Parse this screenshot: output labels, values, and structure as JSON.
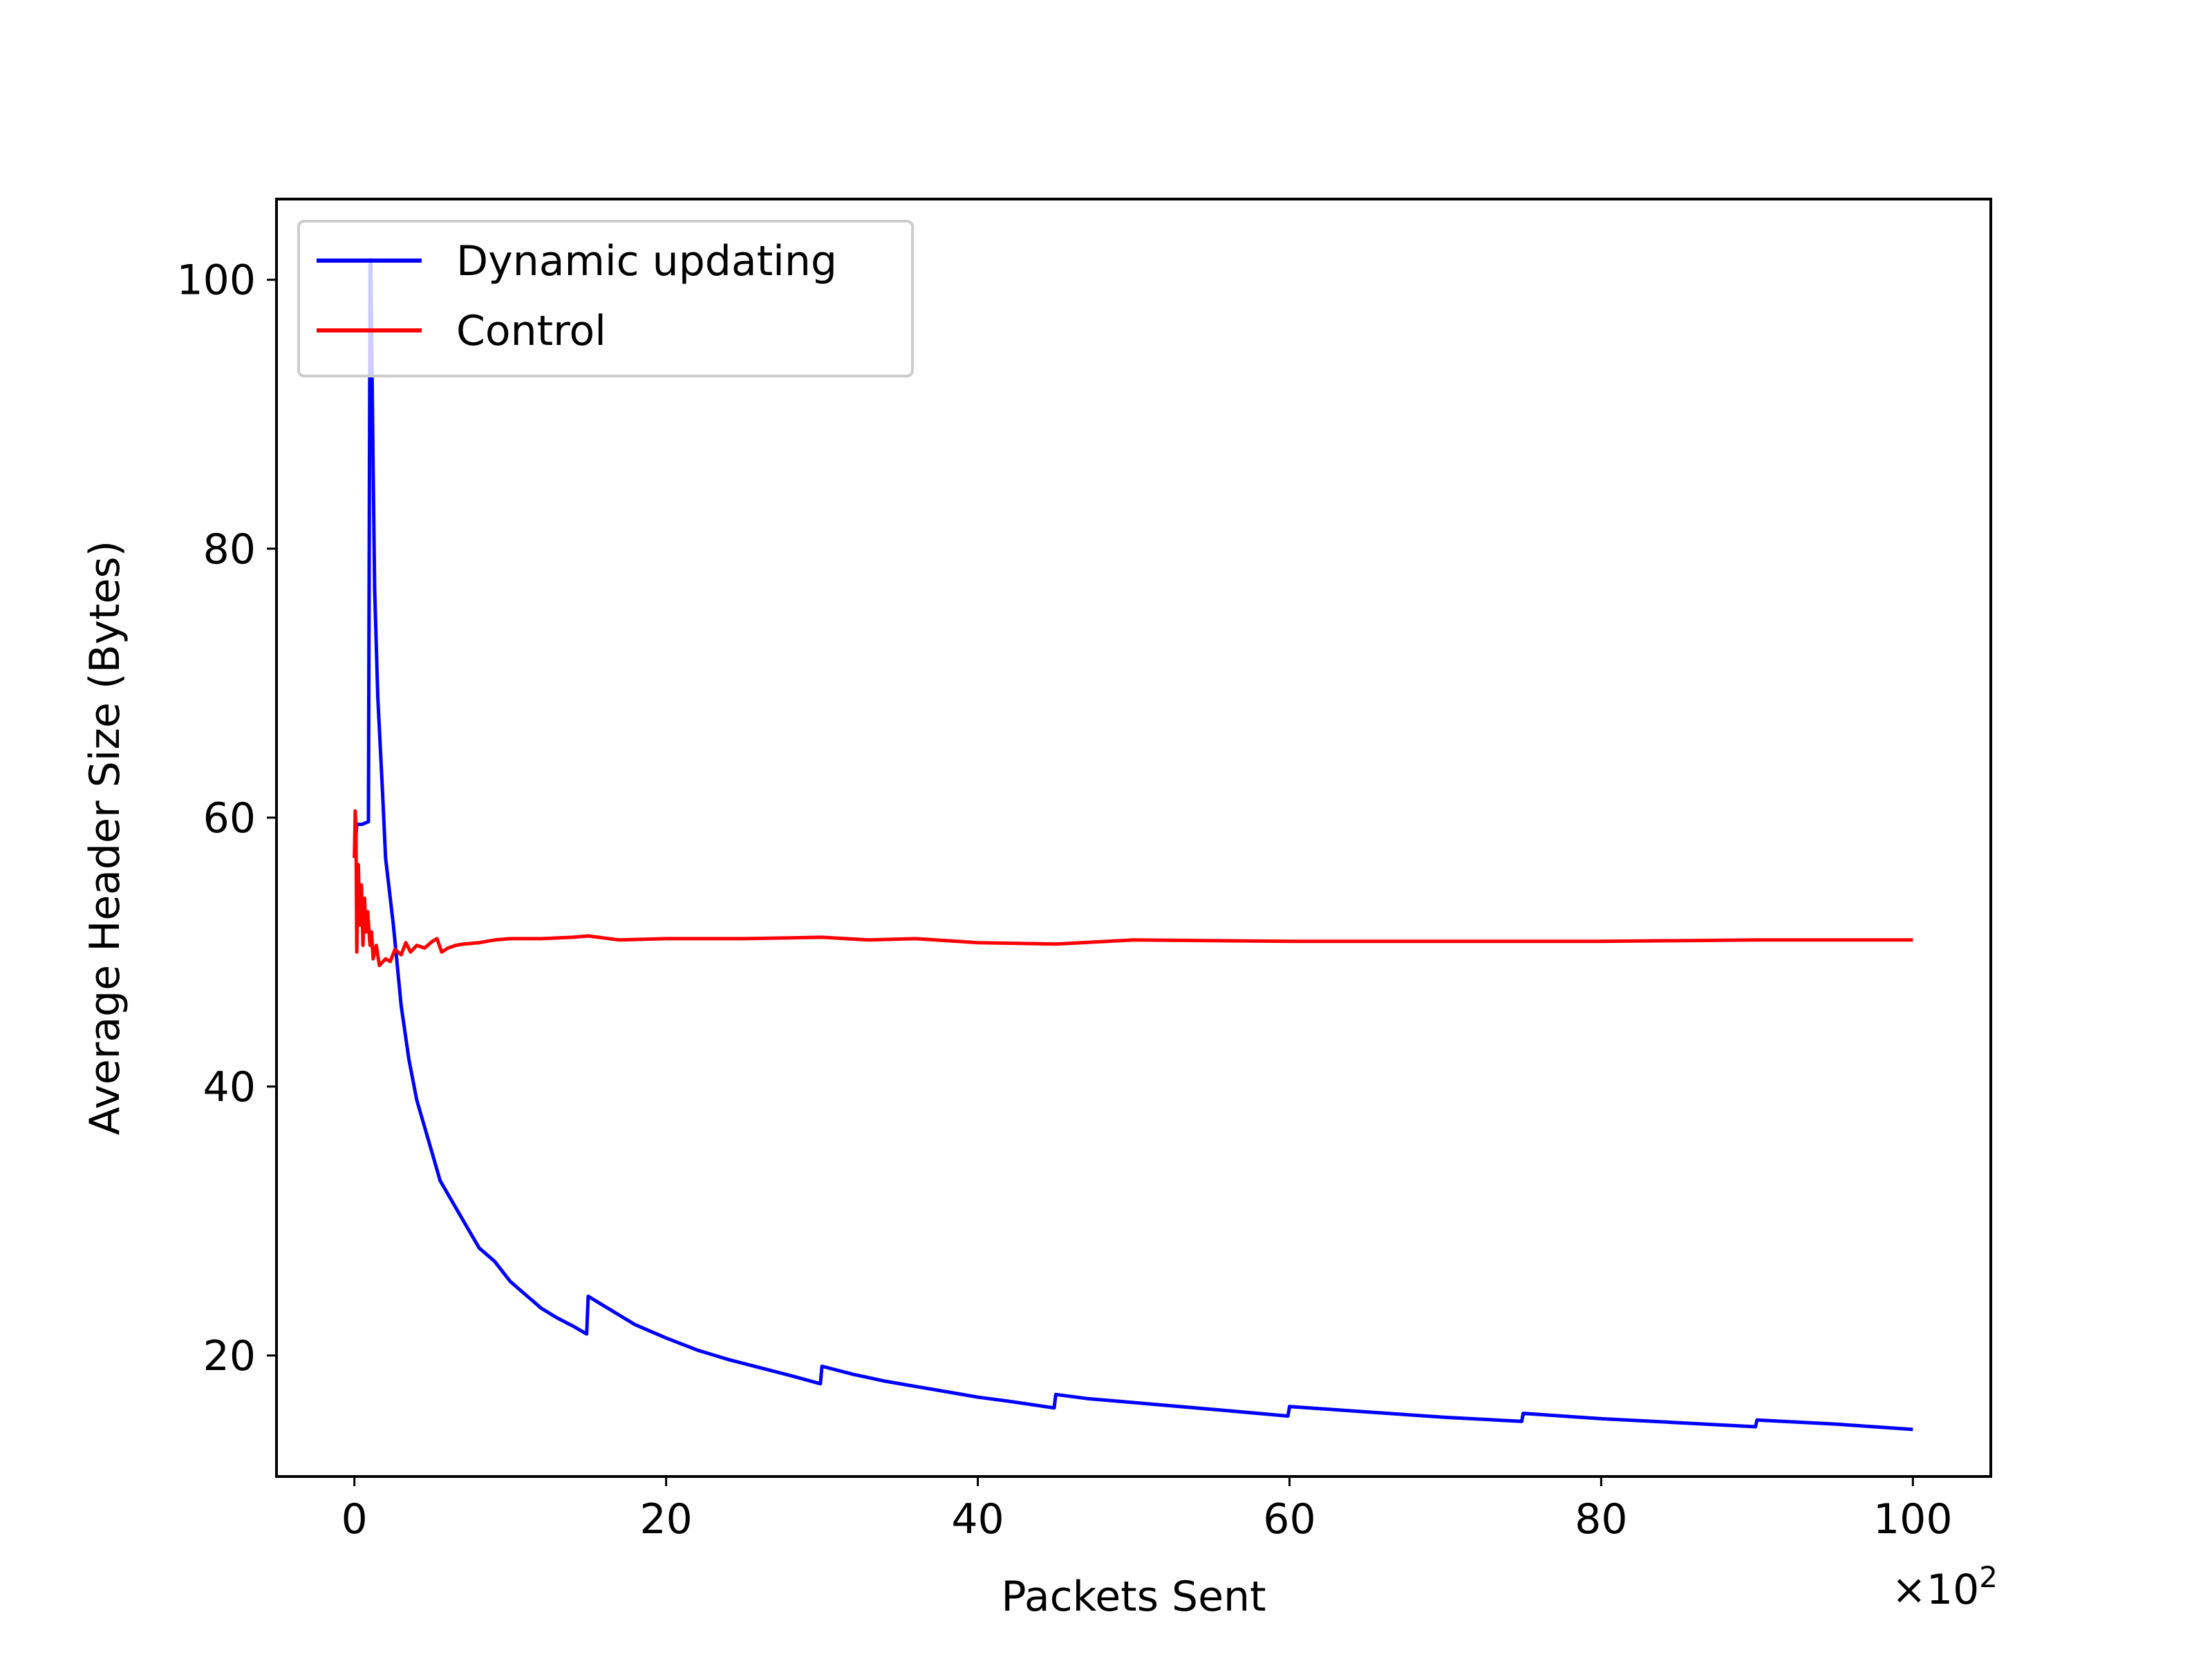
{
  "chart_data": {
    "type": "line",
    "xlabel": "Packets Sent",
    "ylabel": "Average Header Size (Bytes)",
    "x_multiplier": {
      "base": "×10",
      "exponent": "2"
    },
    "xlim": [
      -5,
      105
    ],
    "ylim": [
      11,
      106
    ],
    "x_ticks": [
      0,
      20,
      40,
      60,
      80,
      100
    ],
    "x_tick_labels": [
      "0",
      "20",
      "40",
      "60",
      "80",
      "100"
    ],
    "y_ticks": [
      20,
      40,
      60,
      80,
      100
    ],
    "y_tick_labels": [
      "20",
      "40",
      "60",
      "80",
      "100"
    ],
    "grid": false,
    "legend_position": "upper-left",
    "series": [
      {
        "name": "Dynamic updating",
        "color": "#0000ff",
        "points": [
          [
            0,
            57.0
          ],
          [
            0.15,
            59.5
          ],
          [
            0.5,
            59.5
          ],
          [
            0.9,
            59.7
          ],
          [
            1.0,
            101.0
          ],
          [
            1.05,
            101.5
          ],
          [
            1.2,
            86.0
          ],
          [
            1.3,
            77.0
          ],
          [
            1.5,
            69.0
          ],
          [
            1.8,
            62.0
          ],
          [
            2.0,
            57.0
          ],
          [
            2.5,
            52.0
          ],
          [
            3.0,
            46.0
          ],
          [
            3.5,
            42.0
          ],
          [
            4.0,
            39.0
          ],
          [
            4.5,
            37.0
          ],
          [
            5.0,
            35.0
          ],
          [
            5.5,
            33.0
          ],
          [
            6.0,
            32.0
          ],
          [
            7.0,
            30.0
          ],
          [
            8.0,
            28.0
          ],
          [
            9.0,
            27.0
          ],
          [
            10.0,
            25.5
          ],
          [
            11.0,
            24.5
          ],
          [
            12.0,
            23.5
          ],
          [
            13.0,
            22.8
          ],
          [
            14.0,
            22.2
          ],
          [
            14.9,
            21.6
          ],
          [
            15.0,
            24.4
          ],
          [
            16.0,
            23.7
          ],
          [
            17.0,
            23.0
          ],
          [
            18.0,
            22.3
          ],
          [
            19.0,
            21.8
          ],
          [
            20.0,
            21.3
          ],
          [
            22.0,
            20.4
          ],
          [
            24.0,
            19.7
          ],
          [
            26.0,
            19.1
          ],
          [
            28.0,
            18.5
          ],
          [
            29.9,
            17.9
          ],
          [
            30.0,
            19.2
          ],
          [
            32.0,
            18.6
          ],
          [
            34.0,
            18.1
          ],
          [
            36.0,
            17.7
          ],
          [
            38.0,
            17.3
          ],
          [
            40.0,
            16.9
          ],
          [
            42.0,
            16.6
          ],
          [
            44.9,
            16.1
          ],
          [
            45.0,
            17.1
          ],
          [
            47.0,
            16.8
          ],
          [
            50.0,
            16.5
          ],
          [
            55.0,
            16.0
          ],
          [
            59.9,
            15.5
          ],
          [
            60.0,
            16.2
          ],
          [
            65.0,
            15.8
          ],
          [
            70.0,
            15.4
          ],
          [
            74.9,
            15.1
          ],
          [
            75.0,
            15.7
          ],
          [
            80.0,
            15.3
          ],
          [
            85.0,
            15.0
          ],
          [
            89.9,
            14.7
          ],
          [
            90.0,
            15.2
          ],
          [
            95.0,
            14.9
          ],
          [
            100.0,
            14.5
          ]
        ]
      },
      {
        "name": "Control",
        "color": "#ff0000",
        "points": [
          [
            0,
            57.0
          ],
          [
            0.05,
            60.5
          ],
          [
            0.1,
            59.0
          ],
          [
            0.15,
            50.0
          ],
          [
            0.25,
            56.5
          ],
          [
            0.35,
            52.0
          ],
          [
            0.45,
            55.0
          ],
          [
            0.55,
            50.5
          ],
          [
            0.65,
            54.0
          ],
          [
            0.75,
            51.5
          ],
          [
            0.85,
            53.0
          ],
          [
            1.0,
            50.5
          ],
          [
            1.1,
            51.5
          ],
          [
            1.2,
            49.5
          ],
          [
            1.4,
            50.5
          ],
          [
            1.6,
            49.0
          ],
          [
            2.0,
            49.5
          ],
          [
            2.3,
            49.3
          ],
          [
            2.6,
            50.2
          ],
          [
            3.0,
            49.8
          ],
          [
            3.3,
            50.7
          ],
          [
            3.6,
            50.0
          ],
          [
            4.0,
            50.5
          ],
          [
            4.5,
            50.3
          ],
          [
            5.0,
            50.8
          ],
          [
            5.3,
            51.0
          ],
          [
            5.6,
            50.0
          ],
          [
            6.0,
            50.3
          ],
          [
            6.5,
            50.5
          ],
          [
            7.0,
            50.6
          ],
          [
            8.0,
            50.7
          ],
          [
            9.0,
            50.9
          ],
          [
            10.0,
            51.0
          ],
          [
            12.0,
            51.0
          ],
          [
            14.0,
            51.1
          ],
          [
            15.0,
            51.2
          ],
          [
            17.0,
            50.9
          ],
          [
            20.0,
            51.0
          ],
          [
            25.0,
            51.0
          ],
          [
            30.0,
            51.1
          ],
          [
            33.0,
            50.9
          ],
          [
            36.0,
            51.0
          ],
          [
            40.0,
            50.7
          ],
          [
            45.0,
            50.6
          ],
          [
            50.0,
            50.9
          ],
          [
            60.0,
            50.8
          ],
          [
            70.0,
            50.8
          ],
          [
            80.0,
            50.8
          ],
          [
            90.0,
            50.9
          ],
          [
            100.0,
            50.9
          ]
        ]
      }
    ]
  }
}
